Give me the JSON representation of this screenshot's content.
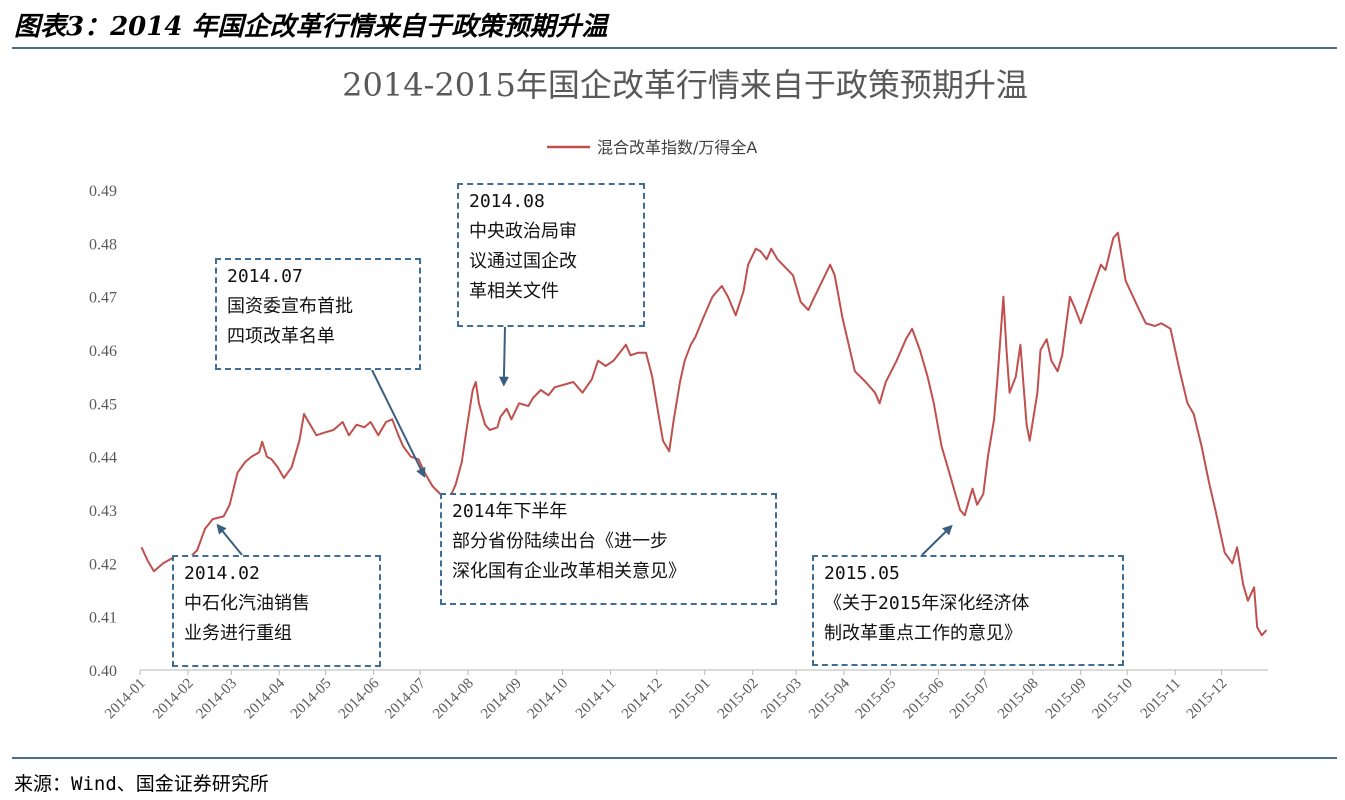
{
  "figure_title": "图表3：2014 年国企改革行情来自于政策预期升温",
  "source_text": "来源：Wind、国金证券研究所",
  "chart_data": {
    "type": "line",
    "title": "2014-2015年国企改革行情来自于政策预期升温",
    "xlabel": "",
    "ylabel": "",
    "ylim": [
      0.4,
      0.49
    ],
    "yticks": [
      "0.49",
      "0.48",
      "0.47",
      "0.46",
      "0.45",
      "0.44",
      "0.43",
      "0.42",
      "0.41",
      "0.40"
    ],
    "xticks": [
      "2014-01",
      "2014-02",
      "2014-03",
      "2014-04",
      "2014-05",
      "2014-06",
      "2014-07",
      "2014-08",
      "2014-09",
      "2014-10",
      "2014-11",
      "2014-12",
      "2015-01",
      "2015-02",
      "2015-03",
      "2015-04",
      "2015-05",
      "2015-06",
      "2015-07",
      "2015-08",
      "2015-09",
      "2015-10",
      "2015-11",
      "2015-12"
    ],
    "legend_position": "top-center",
    "grid": false,
    "line_color": "#c0504d",
    "series": [
      {
        "name": "混合改革指数/万得全A",
        "points": [
          [
            "2014-01-02",
            0.423
          ],
          [
            "2014-01-06",
            0.4205
          ],
          [
            "2014-01-10",
            0.4185
          ],
          [
            "2014-01-16",
            0.42
          ],
          [
            "2014-01-22",
            0.421
          ],
          [
            "2014-01-27",
            0.4192
          ],
          [
            "2014-02-07",
            0.4225
          ],
          [
            "2014-02-12",
            0.4265
          ],
          [
            "2014-02-17",
            0.4283
          ],
          [
            "2014-02-24",
            0.4288
          ],
          [
            "2014-02-28",
            0.431
          ],
          [
            "2014-03-05",
            0.437
          ],
          [
            "2014-03-10",
            0.439
          ],
          [
            "2014-03-14",
            0.44
          ],
          [
            "2014-03-19",
            0.4408
          ],
          [
            "2014-03-21",
            0.4428
          ],
          [
            "2014-03-24",
            0.44
          ],
          [
            "2014-03-27",
            0.4395
          ],
          [
            "2014-03-31",
            0.438
          ],
          [
            "2014-04-04",
            0.436
          ],
          [
            "2014-04-09",
            0.438
          ],
          [
            "2014-04-14",
            0.443
          ],
          [
            "2014-04-17",
            0.448
          ],
          [
            "2014-04-21",
            0.446
          ],
          [
            "2014-04-25",
            0.444
          ],
          [
            "2014-04-30",
            0.4445
          ],
          [
            "2014-05-06",
            0.445
          ],
          [
            "2014-05-12",
            0.4465
          ],
          [
            "2014-05-16",
            0.444
          ],
          [
            "2014-05-21",
            0.446
          ],
          [
            "2014-05-26",
            0.4455
          ],
          [
            "2014-05-30",
            0.4465
          ],
          [
            "2014-06-04",
            0.444
          ],
          [
            "2014-06-09",
            0.4465
          ],
          [
            "2014-06-13",
            0.447
          ],
          [
            "2014-06-17",
            0.444
          ],
          [
            "2014-06-20",
            0.442
          ],
          [
            "2014-06-25",
            0.44
          ],
          [
            "2014-06-30",
            0.4395
          ],
          [
            "2014-07-04",
            0.437
          ],
          [
            "2014-07-09",
            0.4345
          ],
          [
            "2014-07-14",
            0.433
          ],
          [
            "2014-07-17",
            0.432
          ],
          [
            "2014-07-21",
            0.4328
          ],
          [
            "2014-07-24",
            0.4348
          ],
          [
            "2014-07-28",
            0.439
          ],
          [
            "2014-07-31",
            0.445
          ],
          [
            "2014-08-04",
            0.4525
          ],
          [
            "2014-08-06",
            0.454
          ],
          [
            "2014-08-08",
            0.45
          ],
          [
            "2014-08-12",
            0.446
          ],
          [
            "2014-08-15",
            0.445
          ],
          [
            "2014-08-20",
            0.4455
          ],
          [
            "2014-08-22",
            0.4475
          ],
          [
            "2014-08-26",
            0.449
          ],
          [
            "2014-08-29",
            0.447
          ],
          [
            "2014-09-03",
            0.45
          ],
          [
            "2014-09-09",
            0.4495
          ],
          [
            "2014-09-12",
            0.451
          ],
          [
            "2014-09-17",
            0.4525
          ],
          [
            "2014-09-22",
            0.4515
          ],
          [
            "2014-09-26",
            0.453
          ],
          [
            "2014-10-08",
            0.454
          ],
          [
            "2014-10-14",
            0.452
          ],
          [
            "2014-10-20",
            0.4545
          ],
          [
            "2014-10-24",
            0.458
          ],
          [
            "2014-10-29",
            0.457
          ],
          [
            "2014-11-03",
            0.458
          ],
          [
            "2014-11-07",
            0.4595
          ],
          [
            "2014-11-11",
            0.461
          ],
          [
            "2014-11-14",
            0.459
          ],
          [
            "2014-11-19",
            0.4595
          ],
          [
            "2014-11-24",
            0.4595
          ],
          [
            "2014-11-28",
            0.455
          ],
          [
            "2014-12-02",
            0.448
          ],
          [
            "2014-12-05",
            0.443
          ],
          [
            "2014-12-09",
            0.441
          ],
          [
            "2014-12-12",
            0.447
          ],
          [
            "2014-12-16",
            0.454
          ],
          [
            "2014-12-19",
            0.458
          ],
          [
            "2014-12-23",
            0.461
          ],
          [
            "2014-12-26",
            0.4625
          ],
          [
            "2014-12-31",
            0.466
          ],
          [
            "2015-01-06",
            0.47
          ],
          [
            "2015-01-12",
            0.472
          ],
          [
            "2015-01-16",
            0.47
          ],
          [
            "2015-01-21",
            0.4665
          ],
          [
            "2015-01-26",
            0.471
          ],
          [
            "2015-01-29",
            0.476
          ],
          [
            "2015-02-03",
            0.479
          ],
          [
            "2015-02-06",
            0.4785
          ],
          [
            "2015-02-10",
            0.477
          ],
          [
            "2015-02-13",
            0.479
          ],
          [
            "2015-02-17",
            0.477
          ],
          [
            "2015-02-27",
            0.474
          ],
          [
            "2015-03-04",
            0.469
          ],
          [
            "2015-03-09",
            0.4675
          ],
          [
            "2015-03-13",
            0.47
          ],
          [
            "2015-03-18",
            0.473
          ],
          [
            "2015-03-23",
            0.476
          ],
          [
            "2015-03-26",
            0.474
          ],
          [
            "2015-03-31",
            0.466
          ],
          [
            "2015-04-08",
            0.456
          ],
          [
            "2015-04-15",
            0.454
          ],
          [
            "2015-04-21",
            0.452
          ],
          [
            "2015-04-24",
            0.45
          ],
          [
            "2015-04-28",
            0.454
          ],
          [
            "2015-05-05",
            0.458
          ],
          [
            "2015-05-11",
            0.462
          ],
          [
            "2015-05-15",
            0.464
          ],
          [
            "2015-05-20",
            0.46
          ],
          [
            "2015-05-25",
            0.455
          ],
          [
            "2015-05-29",
            0.45
          ],
          [
            "2015-06-03",
            0.442
          ],
          [
            "2015-06-08",
            0.437
          ],
          [
            "2015-06-12",
            0.433
          ],
          [
            "2015-06-15",
            0.43
          ],
          [
            "2015-06-18",
            0.429
          ],
          [
            "2015-06-23",
            0.434
          ],
          [
            "2015-06-26",
            0.431
          ],
          [
            "2015-06-30",
            0.433
          ],
          [
            "2015-07-03",
            0.44
          ],
          [
            "2015-07-07",
            0.447
          ],
          [
            "2015-07-09",
            0.454
          ],
          [
            "2015-07-13",
            0.47
          ],
          [
            "2015-07-15",
            0.46
          ],
          [
            "2015-07-17",
            0.452
          ],
          [
            "2015-07-21",
            0.455
          ],
          [
            "2015-07-24",
            0.461
          ],
          [
            "2015-07-28",
            0.446
          ],
          [
            "2015-07-30",
            0.443
          ],
          [
            "2015-08-04",
            0.452
          ],
          [
            "2015-08-06",
            0.46
          ],
          [
            "2015-08-10",
            0.462
          ],
          [
            "2015-08-13",
            0.458
          ],
          [
            "2015-08-17",
            0.456
          ],
          [
            "2015-08-20",
            0.459
          ],
          [
            "2015-08-25",
            0.47
          ],
          [
            "2015-08-28",
            0.468
          ],
          [
            "2015-09-01",
            0.465
          ],
          [
            "2015-09-08",
            0.471
          ],
          [
            "2015-09-14",
            0.476
          ],
          [
            "2015-09-17",
            0.475
          ],
          [
            "2015-09-22",
            0.481
          ],
          [
            "2015-09-25",
            0.482
          ],
          [
            "2015-09-30",
            0.473
          ],
          [
            "2015-10-08",
            0.468
          ],
          [
            "2015-10-13",
            0.465
          ],
          [
            "2015-10-19",
            0.4645
          ],
          [
            "2015-10-23",
            0.465
          ],
          [
            "2015-10-29",
            0.464
          ],
          [
            "2015-11-04",
            0.456
          ],
          [
            "2015-11-09",
            0.45
          ],
          [
            "2015-11-13",
            0.448
          ],
          [
            "2015-11-18",
            0.442
          ],
          [
            "2015-11-23",
            0.435
          ],
          [
            "2015-11-27",
            0.43
          ],
          [
            "2015-12-03",
            0.422
          ],
          [
            "2015-12-08",
            0.42
          ],
          [
            "2015-12-11",
            0.423
          ],
          [
            "2015-12-15",
            0.416
          ],
          [
            "2015-12-18",
            0.413
          ],
          [
            "2015-12-22",
            0.4155
          ],
          [
            "2015-12-24",
            0.408
          ],
          [
            "2015-12-27",
            0.4065
          ],
          [
            "2015-12-30",
            0.4075
          ]
        ]
      }
    ],
    "annotations": [
      {
        "lines": [
          "2014.02",
          "中石化汽油销售",
          "业务进行重组"
        ],
        "target": [
          "2014-02-17",
          0.4283
        ]
      },
      {
        "lines": [
          "2014.07",
          "国资委宣布首批",
          "四项改革名单"
        ],
        "target": [
          "2014-07-06",
          0.435
        ]
      },
      {
        "lines": [
          "2014.08",
          "中央政治局审",
          "议通过国企改",
          "革相关文件"
        ],
        "target": [
          "2014-08-24",
          0.452
        ]
      },
      {
        "lines": [
          "2014年下半年",
          "部分省份陆续出台《进一步",
          "深化国有企业改革相关意见》"
        ],
        "target": null
      },
      {
        "lines": [
          "2015.05",
          "《关于2015年深化经济体",
          "制改革重点工作的意见》"
        ],
        "target": [
          "2015-06-13",
          0.428
        ]
      }
    ]
  }
}
